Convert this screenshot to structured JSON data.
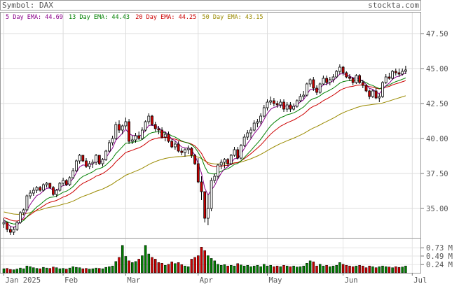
{
  "header": {
    "symbol_label": "Symbol: DAX",
    "site": "stockta.com"
  },
  "legend": [
    {
      "label": "5 Day EMA: 44.69",
      "color": "#8b008b"
    },
    {
      "label": "13 Day EMA: 44.43",
      "color": "#008000"
    },
    {
      "label": "20 Day EMA: 44.25",
      "color": "#cc0000"
    },
    {
      "label": "50 Day EMA: 43.15",
      "color": "#9a8a00"
    }
  ],
  "chart_data": {
    "type": "candlestick",
    "price_axis": {
      "ticks": [
        "47.50",
        "45.00",
        "42.50",
        "40.00",
        "37.50",
        "35.00"
      ],
      "ylim": [
        32.9,
        49.0
      ]
    },
    "volume_axis": {
      "ticks": [
        "0.73 M",
        "0.49 M",
        "0.24 M"
      ],
      "ylim": [
        0,
        1.0
      ]
    },
    "x_labels": [
      {
        "label": "Jan 2025",
        "index": 0
      },
      {
        "label": "Feb",
        "index": 18
      },
      {
        "label": "Mar",
        "index": 37
      },
      {
        "label": "Apr",
        "index": 59
      },
      {
        "label": "May",
        "index": 80
      },
      {
        "label": "Jun",
        "index": 103
      },
      {
        "label": "Jul",
        "index": 124
      }
    ],
    "up_color": "#ffffff",
    "down_color": "#cc0000",
    "vol_up_color": "#008000",
    "vol_down_color": "#cc0000",
    "candles": [
      [
        33.9,
        34.3,
        33.6,
        34.0,
        0.12
      ],
      [
        34.0,
        34.0,
        33.3,
        33.5,
        0.13
      ],
      [
        33.5,
        33.7,
        33.1,
        33.3,
        0.1
      ],
      [
        33.3,
        33.7,
        33.1,
        33.5,
        0.09
      ],
      [
        33.5,
        34.1,
        33.4,
        34.0,
        0.11
      ],
      [
        34.0,
        34.8,
        33.9,
        34.7,
        0.14
      ],
      [
        34.7,
        35.0,
        34.5,
        34.9,
        0.12
      ],
      [
        34.9,
        36.0,
        34.8,
        35.9,
        0.2
      ],
      [
        35.9,
        36.3,
        35.7,
        36.1,
        0.18
      ],
      [
        36.1,
        36.5,
        35.9,
        36.3,
        0.15
      ],
      [
        36.3,
        36.6,
        36.1,
        36.5,
        0.13
      ],
      [
        36.5,
        36.6,
        36.2,
        36.3,
        0.12
      ],
      [
        36.3,
        36.8,
        36.2,
        36.7,
        0.16
      ],
      [
        36.7,
        36.9,
        36.5,
        36.8,
        0.14
      ],
      [
        36.8,
        36.8,
        36.4,
        36.5,
        0.13
      ],
      [
        36.5,
        36.6,
        35.9,
        36.0,
        0.17
      ],
      [
        36.0,
        36.4,
        35.8,
        36.3,
        0.15
      ],
      [
        36.3,
        36.9,
        36.2,
        36.8,
        0.12
      ],
      [
        36.8,
        37.2,
        36.6,
        37.0,
        0.13
      ],
      [
        37.0,
        37.1,
        36.6,
        36.7,
        0.11
      ],
      [
        36.7,
        37.3,
        36.6,
        37.2,
        0.14
      ],
      [
        37.2,
        37.9,
        37.1,
        37.7,
        0.18
      ],
      [
        37.7,
        38.5,
        37.6,
        38.4,
        0.16
      ],
      [
        38.4,
        38.9,
        38.2,
        38.8,
        0.15
      ],
      [
        38.8,
        38.8,
        38.3,
        38.4,
        0.12
      ],
      [
        38.4,
        38.6,
        37.9,
        38.0,
        0.13
      ],
      [
        38.0,
        38.4,
        37.8,
        38.2,
        0.11
      ],
      [
        38.2,
        38.5,
        37.9,
        38.3,
        0.12
      ],
      [
        38.3,
        38.9,
        38.1,
        38.8,
        0.14
      ],
      [
        38.8,
        38.8,
        38.1,
        38.2,
        0.13
      ],
      [
        38.2,
        38.6,
        38.0,
        38.5,
        0.12
      ],
      [
        38.5,
        39.2,
        38.4,
        39.1,
        0.16
      ],
      [
        39.1,
        39.9,
        39.0,
        39.7,
        0.18
      ],
      [
        39.7,
        40.2,
        39.5,
        40.0,
        0.2
      ],
      [
        40.0,
        41.2,
        39.9,
        41.0,
        0.33
      ],
      [
        41.0,
        41.3,
        40.4,
        40.6,
        0.45
      ],
      [
        40.6,
        41.0,
        40.3,
        40.9,
        0.8
      ],
      [
        40.9,
        41.5,
        40.7,
        41.2,
        0.48
      ],
      [
        41.2,
        41.4,
        39.6,
        39.8,
        0.35
      ],
      [
        39.8,
        40.2,
        39.6,
        39.9,
        0.3
      ],
      [
        39.9,
        40.4,
        39.7,
        40.2,
        0.33
      ],
      [
        40.2,
        40.5,
        39.9,
        40.0,
        0.4
      ],
      [
        40.0,
        40.8,
        39.9,
        40.6,
        0.5
      ],
      [
        40.6,
        41.3,
        40.5,
        41.2,
        0.8
      ],
      [
        41.2,
        41.8,
        41.0,
        41.6,
        0.55
      ],
      [
        41.6,
        41.7,
        40.9,
        41.0,
        0.45
      ],
      [
        41.0,
        41.2,
        40.5,
        40.7,
        0.4
      ],
      [
        40.7,
        40.9,
        40.3,
        40.6,
        0.3
      ],
      [
        40.6,
        40.8,
        40.0,
        40.1,
        0.28
      ],
      [
        40.1,
        40.5,
        39.8,
        40.3,
        0.22
      ],
      [
        40.3,
        40.5,
        39.7,
        39.8,
        0.25
      ],
      [
        39.8,
        40.0,
        39.3,
        39.4,
        0.32
      ],
      [
        39.4,
        39.8,
        39.2,
        39.6,
        0.27
      ],
      [
        39.6,
        39.8,
        39.0,
        39.1,
        0.3
      ],
      [
        39.1,
        39.3,
        38.8,
        39.0,
        0.24
      ],
      [
        39.0,
        39.3,
        38.7,
        39.2,
        0.2
      ],
      [
        39.2,
        39.5,
        38.9,
        39.3,
        0.18
      ],
      [
        39.3,
        39.4,
        38.6,
        38.8,
        0.4
      ],
      [
        38.8,
        38.9,
        38.1,
        38.2,
        0.45
      ],
      [
        38.2,
        38.6,
        36.8,
        36.9,
        0.5
      ],
      [
        36.9,
        37.3,
        35.6,
        36.2,
        0.75
      ],
      [
        36.2,
        36.2,
        34.0,
        34.3,
        0.65
      ],
      [
        34.3,
        36.0,
        33.8,
        35.0,
        0.5
      ],
      [
        35.0,
        37.2,
        34.8,
        37.0,
        0.42
      ],
      [
        37.0,
        37.5,
        36.8,
        37.3,
        0.35
      ],
      [
        37.3,
        38.2,
        37.1,
        38.1,
        0.25
      ],
      [
        38.1,
        38.5,
        37.8,
        38.3,
        0.22
      ],
      [
        38.3,
        38.6,
        37.9,
        38.5,
        0.24
      ],
      [
        38.5,
        38.6,
        38.0,
        38.2,
        0.2
      ],
      [
        38.2,
        38.9,
        38.1,
        38.8,
        0.22
      ],
      [
        38.8,
        39.4,
        38.7,
        39.2,
        0.2
      ],
      [
        39.2,
        39.4,
        38.5,
        38.6,
        0.27
      ],
      [
        38.6,
        39.6,
        38.5,
        39.5,
        0.23
      ],
      [
        39.5,
        40.3,
        39.4,
        40.1,
        0.2
      ],
      [
        40.1,
        40.6,
        39.9,
        40.4,
        0.22
      ],
      [
        40.4,
        40.8,
        40.0,
        40.6,
        0.18
      ],
      [
        40.6,
        41.3,
        40.5,
        41.1,
        0.2
      ],
      [
        41.1,
        41.4,
        40.8,
        41.2,
        0.22
      ],
      [
        41.2,
        41.8,
        41.0,
        41.6,
        0.18
      ],
      [
        41.6,
        42.4,
        41.5,
        42.2,
        0.25
      ],
      [
        42.2,
        42.8,
        42.0,
        42.6,
        0.2
      ],
      [
        42.6,
        43.0,
        42.4,
        42.7,
        0.22
      ],
      [
        42.7,
        42.9,
        42.3,
        42.5,
        0.18
      ],
      [
        42.5,
        42.7,
        42.2,
        42.4,
        0.2
      ],
      [
        42.4,
        42.8,
        42.2,
        42.6,
        0.18
      ],
      [
        42.6,
        42.8,
        41.9,
        42.1,
        0.22
      ],
      [
        42.1,
        42.6,
        41.9,
        42.4,
        0.2
      ],
      [
        42.4,
        42.6,
        41.9,
        42.1,
        0.18
      ],
      [
        42.1,
        42.5,
        42.0,
        42.3,
        0.2
      ],
      [
        42.3,
        42.8,
        42.2,
        42.7,
        0.17
      ],
      [
        42.7,
        43.2,
        42.6,
        43.0,
        0.18
      ],
      [
        43.0,
        43.4,
        42.8,
        43.1,
        0.2
      ],
      [
        43.1,
        44.0,
        43.0,
        43.9,
        0.28
      ],
      [
        43.9,
        44.3,
        43.7,
        44.2,
        0.35
      ],
      [
        44.2,
        44.4,
        43.4,
        43.6,
        0.32
      ],
      [
        43.6,
        43.8,
        43.1,
        43.3,
        0.2
      ],
      [
        43.3,
        44.0,
        43.2,
        43.9,
        0.25
      ],
      [
        43.9,
        44.5,
        43.8,
        44.3,
        0.2
      ],
      [
        44.3,
        44.5,
        43.8,
        44.0,
        0.22
      ],
      [
        44.0,
        44.4,
        43.8,
        44.2,
        0.18
      ],
      [
        44.2,
        44.6,
        44.0,
        44.4,
        0.2
      ],
      [
        44.4,
        44.9,
        44.3,
        44.8,
        0.22
      ],
      [
        44.8,
        45.3,
        44.6,
        45.1,
        0.3
      ],
      [
        45.1,
        45.2,
        44.5,
        44.7,
        0.25
      ],
      [
        44.7,
        44.8,
        44.3,
        44.4,
        0.22
      ],
      [
        44.4,
        44.6,
        44.1,
        44.3,
        0.2
      ],
      [
        44.3,
        44.4,
        43.8,
        44.0,
        0.18
      ],
      [
        44.0,
        44.6,
        43.9,
        44.5,
        0.2
      ],
      [
        44.5,
        44.6,
        43.9,
        44.0,
        0.22
      ],
      [
        44.0,
        44.2,
        43.6,
        43.8,
        0.2
      ],
      [
        43.8,
        43.9,
        43.3,
        43.4,
        0.15
      ],
      [
        43.4,
        43.5,
        42.8,
        43.0,
        0.2
      ],
      [
        43.0,
        43.5,
        42.9,
        43.4,
        0.18
      ],
      [
        43.4,
        43.6,
        42.8,
        42.9,
        0.15
      ],
      [
        42.9,
        43.2,
        42.6,
        43.0,
        0.18
      ],
      [
        43.0,
        44.1,
        42.9,
        44.0,
        0.2
      ],
      [
        44.0,
        44.6,
        43.9,
        44.4,
        0.18
      ],
      [
        44.4,
        44.7,
        44.2,
        44.3,
        0.17
      ],
      [
        44.3,
        44.9,
        44.2,
        44.8,
        0.15
      ],
      [
        44.8,
        45.0,
        44.5,
        44.7,
        0.18
      ],
      [
        44.7,
        45.0,
        44.4,
        44.6,
        0.16
      ],
      [
        44.6,
        45.0,
        44.5,
        44.8,
        0.17
      ],
      [
        44.8,
        45.2,
        44.6,
        44.9,
        0.2
      ]
    ]
  }
}
